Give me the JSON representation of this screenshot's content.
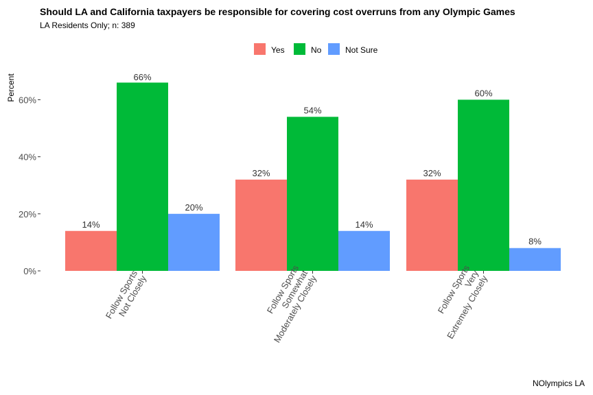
{
  "chart_data": {
    "type": "bar",
    "title": "Should LA and California taxpayers be responsible for covering cost overruns from any Olympic Games",
    "subtitle": "LA Residents Only; n:  389",
    "caption": "NOlympics LA",
    "ylabel": "Percent",
    "xlabel": "",
    "ylim": [
      0,
      70
    ],
    "yticks": [
      0,
      20,
      40,
      60
    ],
    "ytick_labels": [
      "0%",
      "20%",
      "40%",
      "60%"
    ],
    "categories": [
      [
        "Follow Sports",
        "Not Closely"
      ],
      [
        "Follow Sports",
        "Somewhat",
        "Moderately Closely"
      ],
      [
        "Follow Sports",
        "Very",
        "Extremely Closely"
      ]
    ],
    "series": [
      {
        "name": "Yes",
        "color": "#F8766D",
        "values": [
          14,
          32,
          32
        ],
        "labels": [
          "14%",
          "32%",
          "32%"
        ]
      },
      {
        "name": "No",
        "color": "#00BA38",
        "values": [
          66,
          54,
          60
        ],
        "labels": [
          "66%",
          "54%",
          "60%"
        ]
      },
      {
        "name": "Not Sure",
        "color": "#619CFF",
        "values": [
          20,
          14,
          8
        ],
        "labels": [
          "20%",
          "14%",
          "8%"
        ]
      }
    ],
    "legend_position": "top",
    "grid": false
  }
}
